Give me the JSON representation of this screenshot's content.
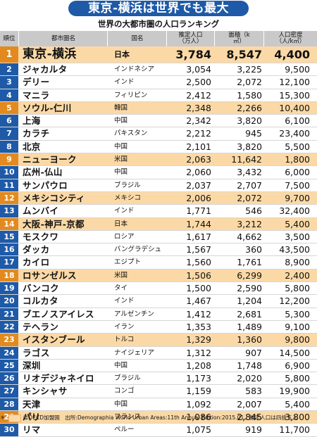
{
  "title": "東京-横浜は世界でも最大",
  "subtitle": "世界の大都市圏の人口ランキング",
  "headers": {
    "rank": "順位",
    "city": "都市圏名",
    "country": "国名",
    "pop": "推定人口（万人）",
    "area": "面積（k㎡）",
    "density": "人口密度（人/k㎡）"
  },
  "colors": {
    "blue": "#1e5aa7",
    "oecd": "#fbd9a6",
    "oecd_rank": "#e28a1f"
  },
  "rows": [
    {
      "rank": "1",
      "city": "東京-横浜",
      "country": "日本",
      "pop": "3,784",
      "area": "8,547",
      "density": "4,400",
      "oecd": true
    },
    {
      "rank": "2",
      "city": "ジャカルタ",
      "country": "インドネシア",
      "pop": "3,054",
      "area": "3,225",
      "density": "9,500",
      "oecd": false
    },
    {
      "rank": "3",
      "city": "デリー",
      "country": "インド",
      "pop": "2,500",
      "area": "2,072",
      "density": "12,100",
      "oecd": false
    },
    {
      "rank": "4",
      "city": "マニラ",
      "country": "フィリピン",
      "pop": "2,412",
      "area": "1,580",
      "density": "15,300",
      "oecd": false
    },
    {
      "rank": "5",
      "city": "ソウル-仁川",
      "country": "韓国",
      "pop": "2,348",
      "area": "2,266",
      "density": "10,400",
      "oecd": true
    },
    {
      "rank": "6",
      "city": "上海",
      "country": "中国",
      "pop": "2,342",
      "area": "3,820",
      "density": "6,100",
      "oecd": false
    },
    {
      "rank": "7",
      "city": "カラチ",
      "country": "パキスタン",
      "pop": "2,212",
      "area": "945",
      "density": "23,400",
      "oecd": false
    },
    {
      "rank": "8",
      "city": "北京",
      "country": "中国",
      "pop": "2,101",
      "area": "3,820",
      "density": "5,500",
      "oecd": false
    },
    {
      "rank": "9",
      "city": "ニューヨーク",
      "country": "米国",
      "pop": "2,063",
      "area": "11,642",
      "density": "1,800",
      "oecd": true
    },
    {
      "rank": "10",
      "city": "広州-仏山",
      "country": "中国",
      "pop": "2,060",
      "area": "3,432",
      "density": "6,000",
      "oecd": false
    },
    {
      "rank": "11",
      "city": "サンパウロ",
      "country": "ブラジル",
      "pop": "2,037",
      "area": "2,707",
      "density": "7,500",
      "oecd": false
    },
    {
      "rank": "12",
      "city": "メキシコシティ",
      "country": "メキシコ",
      "pop": "2,006",
      "area": "2,072",
      "density": "9,700",
      "oecd": true
    },
    {
      "rank": "13",
      "city": "ムンバイ",
      "country": "インド",
      "pop": "1,771",
      "area": "546",
      "density": "32,400",
      "oecd": false
    },
    {
      "rank": "14",
      "city": "大阪-神戸-京都",
      "country": "日本",
      "pop": "1,744",
      "area": "3,212",
      "density": "5,400",
      "oecd": true
    },
    {
      "rank": "15",
      "city": "モスクワ",
      "country": "ロシア",
      "pop": "1,617",
      "area": "4,662",
      "density": "3,500",
      "oecd": false
    },
    {
      "rank": "16",
      "city": "ダッカ",
      "country": "バングラデシュ",
      "pop": "1,567",
      "area": "360",
      "density": "43,500",
      "oecd": false
    },
    {
      "rank": "17",
      "city": "カイロ",
      "country": "エジプト",
      "pop": "1,560",
      "area": "1,761",
      "density": "8,900",
      "oecd": false
    },
    {
      "rank": "18",
      "city": "ロサンゼルス",
      "country": "米国",
      "pop": "1,506",
      "area": "6,299",
      "density": "2,400",
      "oecd": true
    },
    {
      "rank": "19",
      "city": "バンコク",
      "country": "タイ",
      "pop": "1,500",
      "area": "2,590",
      "density": "5,800",
      "oecd": false
    },
    {
      "rank": "20",
      "city": "コルカタ",
      "country": "インド",
      "pop": "1,467",
      "area": "1,204",
      "density": "12,200",
      "oecd": false
    },
    {
      "rank": "21",
      "city": "ブエノスアイレス",
      "country": "アルゼンチン",
      "pop": "1,412",
      "area": "2,681",
      "density": "5,300",
      "oecd": false
    },
    {
      "rank": "22",
      "city": "テヘラン",
      "country": "イラン",
      "pop": "1,353",
      "area": "1,489",
      "density": "9,100",
      "oecd": false
    },
    {
      "rank": "23",
      "city": "イスタンブール",
      "country": "トルコ",
      "pop": "1,329",
      "area": "1,360",
      "density": "9,800",
      "oecd": true
    },
    {
      "rank": "24",
      "city": "ラゴス",
      "country": "ナイジェリア",
      "pop": "1,312",
      "area": "907",
      "density": "14,500",
      "oecd": false
    },
    {
      "rank": "25",
      "city": "深圳",
      "country": "中国",
      "pop": "1,208",
      "area": "1,748",
      "density": "6,900",
      "oecd": false
    },
    {
      "rank": "26",
      "city": "リオデジャネイロ",
      "country": "ブラジル",
      "pop": "1,173",
      "area": "2,020",
      "density": "5,800",
      "oecd": false
    },
    {
      "rank": "27",
      "city": "キンシャサ",
      "country": "コンゴ",
      "pop": "1,159",
      "area": "583",
      "density": "19,900",
      "oecd": false
    },
    {
      "rank": "28",
      "city": "天津",
      "country": "中国",
      "pop": "1,092",
      "area": "2,007",
      "density": "5,400",
      "oecd": false
    },
    {
      "rank": "29",
      "city": "パリ",
      "country": "フランス",
      "pop": "1,086",
      "area": "2,845",
      "density": "3,800",
      "oecd": true
    },
    {
      "rank": "30",
      "city": "リマ",
      "country": "ペルー",
      "pop": "1,075",
      "area": "919",
      "density": "11,700",
      "oecd": false
    }
  ],
  "footer": {
    "mark": "＊",
    "legend": "はOECD加盟国",
    "source": "出所:Demographia World Urban Areas:11th Annual Edition:2015.01。推定人口は四捨五入"
  }
}
